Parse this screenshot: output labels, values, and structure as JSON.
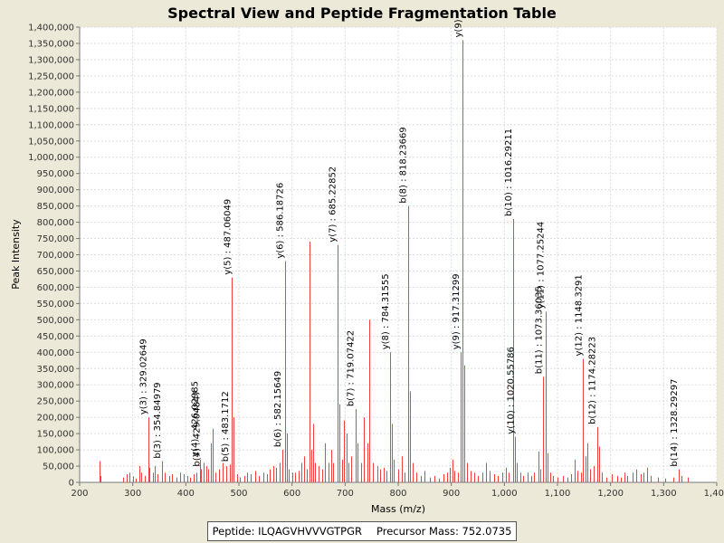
{
  "chart_data": {
    "type": "bar",
    "title": "Spectral View and Peptide Fragmentation Table",
    "xlabel": "Mass (m/z)",
    "ylabel": "Peak Intensity",
    "xlim": [
      200,
      1400
    ],
    "ylim": [
      0,
      1400000
    ],
    "x_ticks": [
      200,
      300,
      400,
      500,
      600,
      700,
      800,
      900,
      1000,
      1100,
      1200,
      1300,
      1400
    ],
    "x_tick_labels": [
      "200",
      "300",
      "400",
      "500",
      "600",
      "700",
      "800",
      "900",
      "1,000",
      "1,100",
      "1,200",
      "1,300",
      "1,400"
    ],
    "y_ticks": [
      0,
      50000,
      100000,
      150000,
      200000,
      250000,
      300000,
      350000,
      400000,
      450000,
      500000,
      550000,
      600000,
      650000,
      700000,
      750000,
      800000,
      850000,
      900000,
      950000,
      1000000,
      1050000,
      1100000,
      1150000,
      1200000,
      1250000,
      1300000,
      1350000,
      1400000
    ],
    "y_tick_labels": [
      "0",
      "50,000",
      "100,000",
      "150,000",
      "200,000",
      "250,000",
      "300,000",
      "350,000",
      "400,000",
      "450,000",
      "500,000",
      "550,000",
      "600,000",
      "650,000",
      "700,000",
      "750,000",
      "800,000",
      "850,000",
      "900,000",
      "950,000",
      "1,000,000",
      "1,050,000",
      "1,100,000",
      "1,150,000",
      "1,200,000",
      "1,250,000",
      "1,300,000",
      "1,350,000",
      "1,400,000"
    ],
    "grid": true,
    "peak_color": "#F04040",
    "annotated_peaks": [
      {
        "label": "y(3) : 329.02649",
        "mz": 329.03,
        "intensity": 200000
      },
      {
        "label": "b(3) : 354.84979",
        "mz": 354.85,
        "intensity": 65000
      },
      {
        "label": "y(4) : 426.02985",
        "mz": 426.03,
        "intensity": 70000
      },
      {
        "label": "b(4) : 429.04847",
        "mz": 429.05,
        "intensity": 40000
      },
      {
        "label": "y(5) : 487.06049",
        "mz": 487.06,
        "intensity": 630000
      },
      {
        "label": "b(5) : 483.1712",
        "mz": 483.17,
        "intensity": 55000
      },
      {
        "label": "y(6) : 586.18726",
        "mz": 586.19,
        "intensity": 680000
      },
      {
        "label": "b(6) : 582.15649",
        "mz": 582.16,
        "intensity": 100000
      },
      {
        "label": "y(7) : 685.22852",
        "mz": 685.23,
        "intensity": 730000
      },
      {
        "label": "b(7) : 719.07422",
        "mz": 719.07,
        "intensity": 225000
      },
      {
        "label": "y(8) : 784.31555",
        "mz": 784.32,
        "intensity": 400000
      },
      {
        "label": "b(8) : 818.23669",
        "mz": 818.24,
        "intensity": 850000
      },
      {
        "label": "y(9) : 917.31299",
        "mz": 917.31,
        "intensity": 400000
      },
      {
        "label": "y(9)",
        "mz": 921.5,
        "intensity": 1360000
      },
      {
        "label": "b(10) : 1016.29211",
        "mz": 1016.29,
        "intensity": 810000
      },
      {
        "label": "y(10) : 1020.55786",
        "mz": 1020.56,
        "intensity": 140000
      },
      {
        "label": "b(11) : 1073.36035",
        "mz": 1073.36,
        "intensity": 325000
      },
      {
        "label": "y(11) : 1077.25244",
        "mz": 1077.25,
        "intensity": 525000
      },
      {
        "label": "y(12) : 1148.3291",
        "mz": 1148.33,
        "intensity": 380000
      },
      {
        "label": "b(12) : 1174.28223",
        "mz": 1174.28,
        "intensity": 170000
      },
      {
        "label": "b(14) : 1328.29297",
        "mz": 1328.29,
        "intensity": 40000
      }
    ],
    "peaks": [
      [
        238,
        65000
      ],
      [
        240,
        20000
      ],
      [
        282,
        15000
      ],
      [
        288,
        25000
      ],
      [
        294,
        30000
      ],
      [
        300,
        18000
      ],
      [
        306,
        12000
      ],
      [
        312,
        50000
      ],
      [
        316,
        30000
      ],
      [
        322,
        20000
      ],
      [
        329.03,
        200000
      ],
      [
        332,
        45000
      ],
      [
        338,
        30000
      ],
      [
        342,
        50000
      ],
      [
        346,
        25000
      ],
      [
        354.85,
        65000
      ],
      [
        360,
        30000
      ],
      [
        368,
        20000
      ],
      [
        374,
        25000
      ],
      [
        382,
        15000
      ],
      [
        390,
        30000
      ],
      [
        396,
        25000
      ],
      [
        402,
        20000
      ],
      [
        408,
        15000
      ],
      [
        414,
        25000
      ],
      [
        420,
        30000
      ],
      [
        426.03,
        70000
      ],
      [
        429.05,
        40000
      ],
      [
        434,
        60000
      ],
      [
        438,
        50000
      ],
      [
        442,
        40000
      ],
      [
        448,
        120000
      ],
      [
        451,
        165000
      ],
      [
        456,
        30000
      ],
      [
        462,
        40000
      ],
      [
        470,
        60000
      ],
      [
        476,
        50000
      ],
      [
        483.17,
        55000
      ],
      [
        487.06,
        630000
      ],
      [
        490,
        200000
      ],
      [
        496,
        25000
      ],
      [
        502,
        15000
      ],
      [
        510,
        20000
      ],
      [
        516,
        30000
      ],
      [
        522,
        25000
      ],
      [
        530,
        35000
      ],
      [
        538,
        20000
      ],
      [
        546,
        30000
      ],
      [
        552,
        25000
      ],
      [
        558,
        40000
      ],
      [
        564,
        50000
      ],
      [
        570,
        45000
      ],
      [
        576,
        60000
      ],
      [
        582.16,
        100000
      ],
      [
        586.19,
        680000
      ],
      [
        590,
        150000
      ],
      [
        594,
        40000
      ],
      [
        600,
        30000
      ],
      [
        606,
        30000
      ],
      [
        612,
        35000
      ],
      [
        618,
        60000
      ],
      [
        622,
        80000
      ],
      [
        628,
        40000
      ],
      [
        632.5,
        740000
      ],
      [
        636,
        100000
      ],
      [
        640,
        180000
      ],
      [
        644,
        60000
      ],
      [
        650,
        50000
      ],
      [
        656,
        40000
      ],
      [
        662,
        120000
      ],
      [
        668,
        60000
      ],
      [
        674,
        100000
      ],
      [
        678,
        60000
      ],
      [
        685.23,
        730000
      ],
      [
        690,
        240000
      ],
      [
        694,
        70000
      ],
      [
        698,
        190000
      ],
      [
        702,
        150000
      ],
      [
        706,
        60000
      ],
      [
        712,
        80000
      ],
      [
        719.07,
        225000
      ],
      [
        724,
        120000
      ],
      [
        730,
        60000
      ],
      [
        736,
        200000
      ],
      [
        742,
        120000
      ],
      [
        746,
        500000
      ],
      [
        752,
        60000
      ],
      [
        760,
        50000
      ],
      [
        766,
        40000
      ],
      [
        772,
        45000
      ],
      [
        778,
        35000
      ],
      [
        784.32,
        400000
      ],
      [
        788,
        180000
      ],
      [
        792,
        70000
      ],
      [
        800,
        40000
      ],
      [
        806,
        80000
      ],
      [
        812,
        30000
      ],
      [
        818.24,
        850000
      ],
      [
        822,
        280000
      ],
      [
        828,
        60000
      ],
      [
        834,
        30000
      ],
      [
        842,
        20000
      ],
      [
        850,
        35000
      ],
      [
        860,
        15000
      ],
      [
        868,
        20000
      ],
      [
        876,
        12000
      ],
      [
        886,
        25000
      ],
      [
        892,
        30000
      ],
      [
        898,
        45000
      ],
      [
        902,
        70000
      ],
      [
        906,
        35000
      ],
      [
        912,
        30000
      ],
      [
        917.31,
        400000
      ],
      [
        921.5,
        1360000
      ],
      [
        925,
        360000
      ],
      [
        930,
        60000
      ],
      [
        936,
        35000
      ],
      [
        944,
        30000
      ],
      [
        950,
        20000
      ],
      [
        958,
        30000
      ],
      [
        966,
        60000
      ],
      [
        972,
        35000
      ],
      [
        980,
        25000
      ],
      [
        988,
        20000
      ],
      [
        996,
        30000
      ],
      [
        1002,
        45000
      ],
      [
        1008,
        30000
      ],
      [
        1016.29,
        810000
      ],
      [
        1020.56,
        140000
      ],
      [
        1024,
        60000
      ],
      [
        1030,
        30000
      ],
      [
        1036,
        20000
      ],
      [
        1044,
        30000
      ],
      [
        1050,
        20000
      ],
      [
        1056,
        30000
      ],
      [
        1064,
        95000
      ],
      [
        1068,
        40000
      ],
      [
        1073.36,
        325000
      ],
      [
        1077.25,
        525000
      ],
      [
        1081,
        90000
      ],
      [
        1086,
        30000
      ],
      [
        1092,
        20000
      ],
      [
        1100,
        15000
      ],
      [
        1110,
        20000
      ],
      [
        1118,
        15000
      ],
      [
        1126,
        25000
      ],
      [
        1132,
        70000
      ],
      [
        1138,
        35000
      ],
      [
        1144,
        30000
      ],
      [
        1148.33,
        380000
      ],
      [
        1152,
        80000
      ],
      [
        1156,
        120000
      ],
      [
        1162,
        40000
      ],
      [
        1168,
        50000
      ],
      [
        1174.28,
        170000
      ],
      [
        1178,
        110000
      ],
      [
        1184,
        30000
      ],
      [
        1192,
        15000
      ],
      [
        1202,
        25000
      ],
      [
        1212,
        20000
      ],
      [
        1220,
        15000
      ],
      [
        1226,
        30000
      ],
      [
        1232,
        20000
      ],
      [
        1242,
        30000
      ],
      [
        1248,
        40000
      ],
      [
        1256,
        25000
      ],
      [
        1262,
        30000
      ],
      [
        1268,
        45000
      ],
      [
        1276,
        20000
      ],
      [
        1290,
        15000
      ],
      [
        1302,
        12000
      ],
      [
        1318,
        15000
      ],
      [
        1328.29,
        40000
      ],
      [
        1334,
        20000
      ],
      [
        1346,
        15000
      ]
    ]
  },
  "legend": {
    "peptide": "Peptide: ILQAGVHVVVGTPGR",
    "precursor": "Precursor Mass: 752.0735"
  }
}
